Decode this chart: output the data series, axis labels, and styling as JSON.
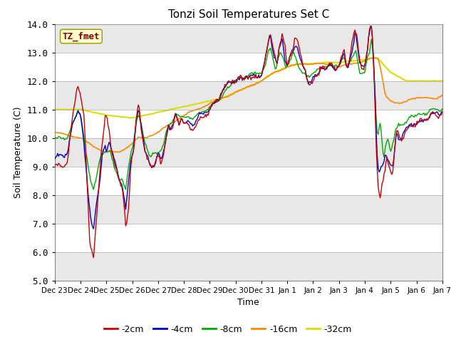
{
  "title": "Tonzi Soil Temperatures Set C",
  "xlabel": "Time",
  "ylabel": "Soil Temperature (C)",
  "ylim": [
    5.0,
    14.0
  ],
  "yticks": [
    5.0,
    6.0,
    7.0,
    8.0,
    9.0,
    10.0,
    11.0,
    12.0,
    13.0,
    14.0
  ],
  "xtick_labels": [
    "Dec 23",
    "Dec 24",
    "Dec 25",
    "Dec 26",
    "Dec 27",
    "Dec 28",
    "Dec 29",
    "Dec 30",
    "Dec 31",
    "Jan 1",
    "Jan 2",
    "Jan 3",
    "Jan 4",
    "Jan 5",
    "Jan 6",
    "Jan 7"
  ],
  "legend_label": "TZ_fmet",
  "series_labels": [
    "-2cm",
    "-4cm",
    "-8cm",
    "-16cm",
    "-32cm"
  ],
  "series_colors": [
    "#cc0000",
    "#0000cc",
    "#00aa00",
    "#ff8800",
    "#dddd00"
  ],
  "fig_bg_color": "#ffffff",
  "plot_bg_color": "#e8e8e8",
  "annotation_box_color": "#ffffcc",
  "annotation_text_color": "#880000",
  "grid_color": "#ffffff",
  "n_points": 400
}
